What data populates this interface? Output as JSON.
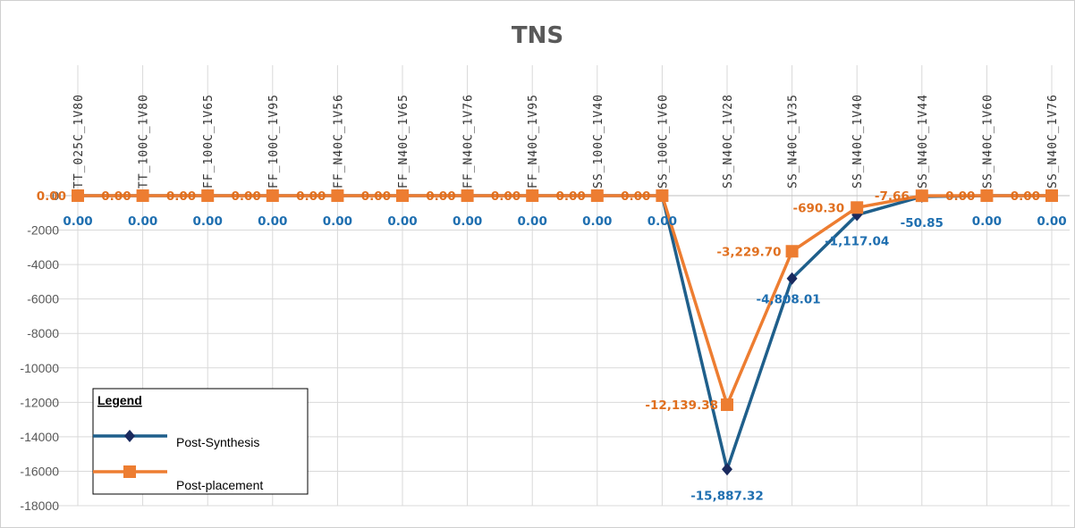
{
  "chart_data": {
    "type": "line",
    "title": "TNS",
    "xlabel": "",
    "ylabel": "",
    "ylim": [
      -18000,
      0
    ],
    "yticks": [
      0,
      -2000,
      -4000,
      -6000,
      -8000,
      -10000,
      -12000,
      -14000,
      -16000,
      -18000
    ],
    "ytick_labels": [
      "0",
      "-2000",
      "-4000",
      "-6000",
      "-8000",
      "-10000",
      "-12000",
      "-14000",
      "-16000",
      "-18000"
    ],
    "grid": true,
    "legend": {
      "title": "Legend",
      "placement": "bottom-left"
    },
    "categories": [
      "TT_025C_1V80",
      "TT_100C_1V80",
      "FF_100C_1V65",
      "FF_100C_1V95",
      "FF_N40C_1V56",
      "FF_N40C_1V65",
      "FF_N40C_1V76",
      "FF_N40C_1V95",
      "SS_100C_1V40",
      "SS_100C_1V60",
      "SS_N40C_1V28",
      "SS_N40C_1V35",
      "SS_N40C_1V40",
      "SS_N40C_1V44",
      "SS_N40C_1V60",
      "SS_N40C_1V76"
    ],
    "series": [
      {
        "name": "Post-Synthesis",
        "color": "#1f5f8b",
        "marker_color": "#1a2a5e",
        "marker": "diamond",
        "values": [
          0,
          0,
          0,
          0,
          0,
          0,
          0,
          0,
          0,
          0,
          -15887.32,
          -4808.01,
          -1117.04,
          -50.85,
          0,
          0
        ],
        "labels": [
          "0.00",
          "0.00",
          "0.00",
          "0.00",
          "0.00",
          "0.00",
          "0.00",
          "0.00",
          "0.00",
          "0.00",
          "-15,887.32",
          "-4,808.01",
          "-1,117.04",
          "-50.85",
          "0.00",
          "0.00"
        ],
        "label_color": "#1f6fb0"
      },
      {
        "name": "Post-placement",
        "color": "#ed7d31",
        "marker_color": "#ed7d31",
        "marker": "square",
        "values": [
          0,
          0,
          0,
          0,
          0,
          0,
          0,
          0,
          0,
          0,
          -12139.38,
          -3229.7,
          -690.3,
          -7.66,
          0,
          0
        ],
        "labels": [
          "0.00",
          "0.00",
          "0.00",
          "0.00",
          "0.00",
          "0.00",
          "0.00",
          "0.00",
          "0.00",
          "0.00",
          "-12,139.38",
          "-3,229.70",
          "-690.30",
          "-7.66",
          "0.00",
          "0.00"
        ],
        "label_color": "#e07020"
      }
    ]
  }
}
